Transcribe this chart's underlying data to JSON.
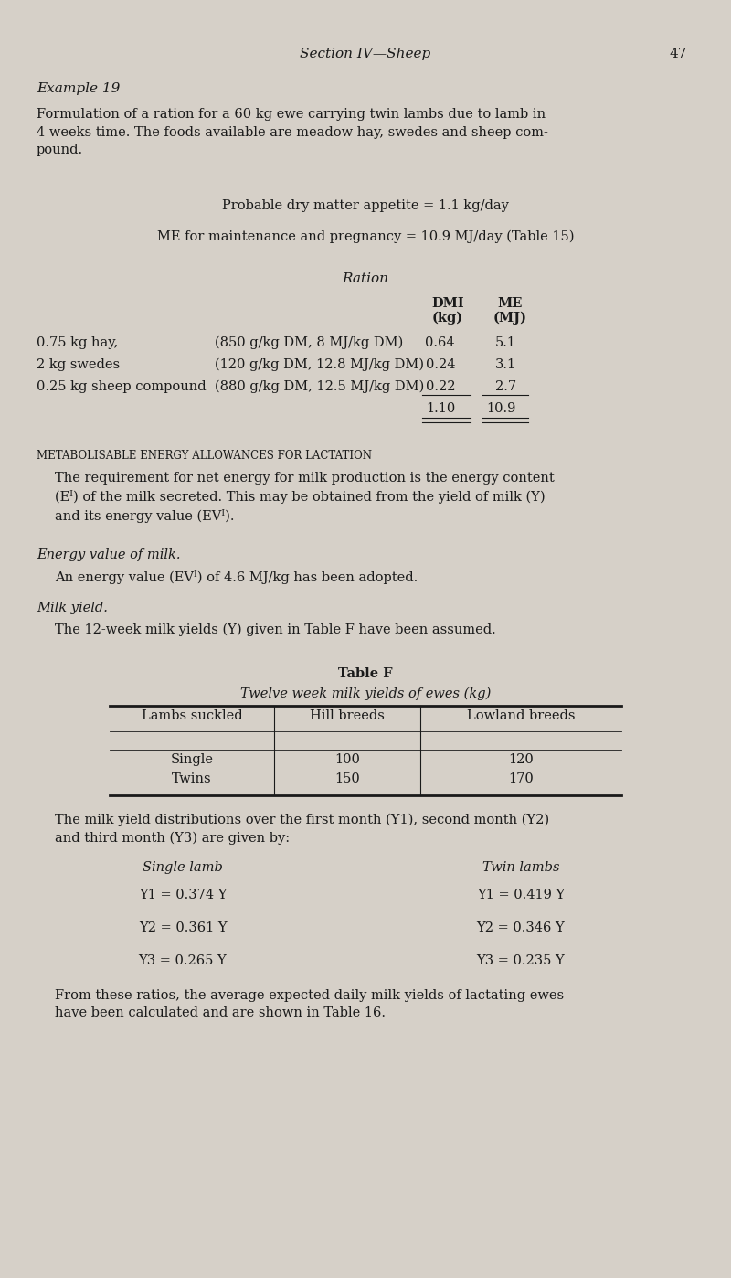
{
  "bg_color": "#d6d0c8",
  "text_color": "#1a1a1a",
  "page_width": 8.0,
  "page_height": 13.98,
  "header_section": "Section IV—Sheep",
  "page_number": "47",
  "example_title": "Example 19",
  "intro_text": "Formulation of a ration for a 60 kg ewe carrying twin lambs due to lamb in\n4 weeks time. The foods available are meadow hay, swedes and sheep com-\npound.",
  "appetite_line": "Probable dry matter appetite = 1.1 kg/day",
  "me_line": "ME for maintenance and pregnancy = 10.9 MJ/day (Table 15)",
  "ration_title": "Ration",
  "ration_rows": [
    [
      "0.75 kg hay,",
      "(850 g/kg DM, 8 MJ/kg DM)",
      "0.64",
      "5.1"
    ],
    [
      "2 kg swedes",
      "(120 g/kg DM, 12.8 MJ/kg DM)",
      "0.24",
      "3.1"
    ],
    [
      "0.25 kg sheep compound",
      "(880 g/kg DM, 12.5 MJ/kg DM)",
      "0.22",
      "2.7"
    ]
  ],
  "ration_totals": [
    "1.10",
    "10.9"
  ],
  "section_heading": "METABOLISABLE ENERGY ALLOWANCES FOR LACTATION",
  "para1": "The requirement for net energy for milk production is the energy content\n(Eᴵ) of the milk secreted. This may be obtained from the yield of milk (Y)\nand its energy value (EVᴵ).",
  "energy_heading": "Energy value of milk.",
  "energy_text": "An energy value (EVᴵ) of 4.6 MJ/kg has been adopted.",
  "milk_heading": "Milk yield.",
  "milk_text": "The 12-week milk yields (Y) given in Table F have been assumed.",
  "table_title": "Table F",
  "table_subtitle": "Twelve week milk yields of ewes (kg)",
  "table_headers": [
    "Lambs suckled",
    "Hill breeds",
    "Lowland breeds"
  ],
  "table_rows": [
    [
      "Single",
      "100",
      "120"
    ],
    [
      "Twins",
      "150",
      "170"
    ]
  ],
  "distribution_intro": "The milk yield distributions over the first month (Y1), second month (Y2)\nand third month (Y3) are given by:",
  "single_lamb_header": "Single lamb",
  "twin_lambs_header": "Twin lambs",
  "single_equations": [
    "Y1 = 0.374 Y",
    "Y2 = 0.361 Y",
    "Y3 = 0.265 Y"
  ],
  "twin_equations": [
    "Y1 = 0.419 Y",
    "Y2 = 0.346 Y",
    "Y3 = 0.235 Y"
  ],
  "closing_text": "From these ratios, the average expected daily milk yields of lactating ewes\nhave been calculated and are shown in Table 16."
}
